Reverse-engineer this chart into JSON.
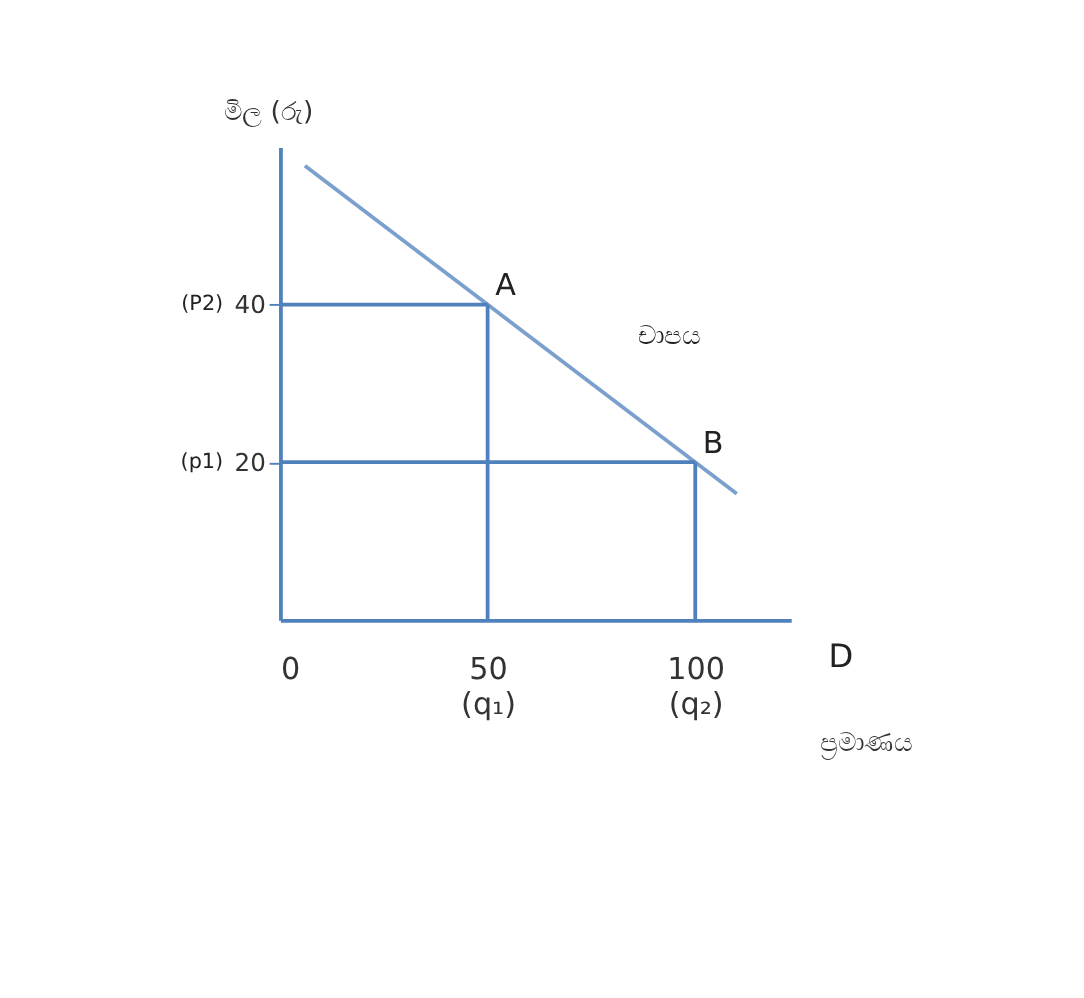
{
  "chart_data": {
    "type": "line",
    "xlabel": "ප්‍රමාණය",
    "ylabel": "මිල (රු)",
    "xlim": [
      0,
      123
    ],
    "ylim": [
      0,
      60
    ],
    "xticks": [
      {
        "value": 0,
        "label": "0"
      },
      {
        "value": 50,
        "label": "50\n(q₁)"
      },
      {
        "value": 100,
        "label": "100\n(q₂)"
      }
    ],
    "yticks": [
      20,
      40
    ],
    "series": [
      {
        "color": "#7ba0cd",
        "x": [
          6,
          50,
          100,
          110
        ],
        "values": [
          57.6,
          40,
          20,
          16
        ]
      },
      {
        "color": "#4f81bd",
        "x": [
          0,
          50
        ],
        "values": [
          40,
          40
        ]
      },
      {
        "color": "#4f81bd",
        "x": [
          50,
          50
        ],
        "values": [
          40,
          0
        ]
      },
      {
        "color": "#4f81bd",
        "x": [
          0,
          100
        ],
        "values": [
          20,
          20
        ]
      },
      {
        "color": "#4f81bd",
        "x": [
          100,
          100
        ],
        "values": [
          20,
          0
        ]
      }
    ],
    "annotations": [
      {
        "text": "A",
        "x": 50,
        "y": 40
      },
      {
        "text": "B",
        "x": 100,
        "y": 20
      },
      "චාපය",
      "D",
      "(P2)",
      "(p1)"
    ],
    "grid": false,
    "marker": "none",
    "line_style": "solid"
  }
}
